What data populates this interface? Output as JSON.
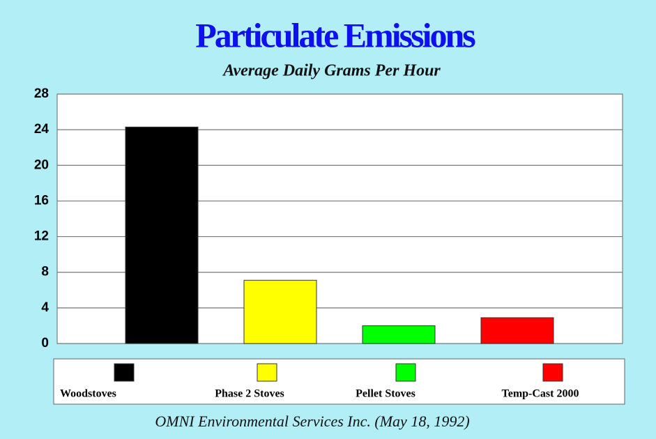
{
  "chart_data": {
    "type": "bar",
    "title": "Particulate Emissions",
    "subtitle": "Average Daily Grams Per Hour",
    "source": "OMNI Environmental Services Inc. (May 18, 1992)",
    "categories": [
      "Woodstoves",
      "Phase 2 Stoves",
      "Pellet Stoves",
      "Temp-Cast 2000"
    ],
    "values": [
      24.3,
      7.1,
      2.0,
      2.9
    ],
    "colors": [
      "#000000",
      "#ffff00",
      "#00ff00",
      "#ff0000"
    ],
    "ylim": [
      0,
      28
    ],
    "yticks": [
      0,
      4,
      8,
      12,
      16,
      20,
      24,
      28
    ],
    "grid": true
  }
}
